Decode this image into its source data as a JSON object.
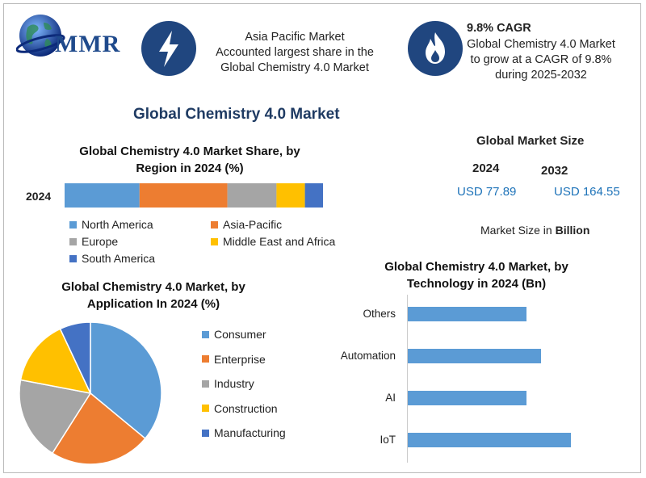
{
  "brand": {
    "logo_text": "MMR"
  },
  "highlights": {
    "region": {
      "text": "Asia Pacific Market Accounted largest share in the Global Chemistry 4.0 Market",
      "line1": "Asia Pacific Market",
      "line2": "Accounted largest share in the",
      "line3": "Global Chemistry  4.0 Market",
      "icon": "lightning-icon"
    },
    "cagr": {
      "headline": "9.8% CAGR",
      "line1": "Global Chemistry 4.0 Market",
      "line2": "to grow at a CAGR of 9.8%",
      "line3": "during 2025-2032",
      "icon": "flame-icon"
    }
  },
  "main_title": "Global Chemistry 4.0 Market",
  "market_size": {
    "title": "Global Market Size",
    "year1": "2024",
    "value1": "USD 77.89",
    "year2": "2032",
    "value2": "USD 164.55",
    "note_prefix": "Market Size in ",
    "note_unit": "Billion"
  },
  "colors": {
    "blue": "#5b9bd5",
    "orange": "#ed7d31",
    "gray": "#a5a5a5",
    "yellow": "#ffc000",
    "darkblue": "#4472c4",
    "navy": "#20467f"
  },
  "chart_data": [
    {
      "type": "bar",
      "orientation": "horizontal-stacked",
      "title_line1": "Global Chemistry 4.0 Market Share, by",
      "title_line2": "Region in 2024 (%)",
      "categories": [
        "2024"
      ],
      "series": [
        {
          "name": "North America",
          "values": [
            29
          ],
          "color": "#5b9bd5"
        },
        {
          "name": "Asia-Pacific",
          "values": [
            34
          ],
          "color": "#ed7d31"
        },
        {
          "name": "Europe",
          "values": [
            19
          ],
          "color": "#a5a5a5"
        },
        {
          "name": "Middle East and Africa",
          "values": [
            11
          ],
          "color": "#ffc000"
        },
        {
          "name": "South America",
          "values": [
            7
          ],
          "color": "#4472c4"
        }
      ]
    },
    {
      "type": "pie",
      "title_line1": "Global Chemistry 4.0 Market, by",
      "title_line2": "Application In 2024 (%)",
      "slices": [
        {
          "name": "Consumer",
          "value": 36,
          "color": "#5b9bd5"
        },
        {
          "name": "Enterprise",
          "value": 23,
          "color": "#ed7d31"
        },
        {
          "name": "Industry",
          "value": 19,
          "color": "#a5a5a5"
        },
        {
          "name": "Construction",
          "value": 15,
          "color": "#ffc000"
        },
        {
          "name": "Manufacturing",
          "value": 7,
          "color": "#4472c4"
        }
      ]
    },
    {
      "type": "bar",
      "orientation": "horizontal",
      "title_line1": "Global Chemistry 4.0 Market, by",
      "title_line2": "Technology in 2024 (Bn)",
      "categories": [
        "Others",
        "Automation",
        "AI",
        "IoT"
      ],
      "values": [
        16,
        18,
        16,
        22
      ],
      "xlim": [
        0,
        30
      ],
      "color": "#5b9bd5"
    }
  ]
}
